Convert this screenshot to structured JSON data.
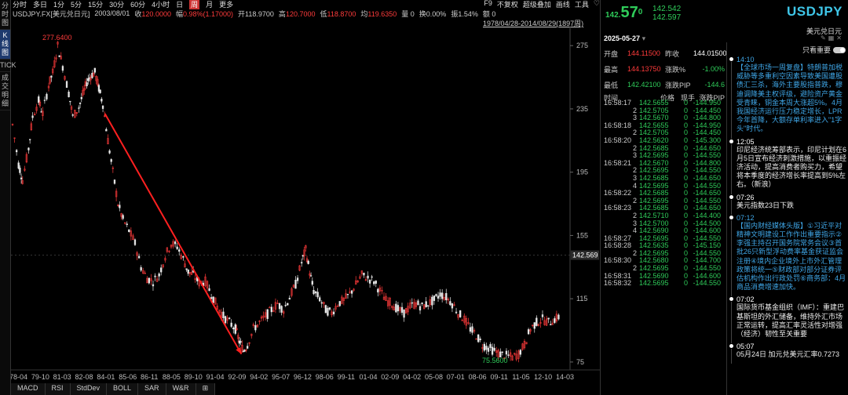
{
  "vnav": {
    "items": [
      "分时图",
      "K线图",
      "TICK",
      "成交明细"
    ]
  },
  "toolbar": {
    "periods": [
      "分时",
      "多日",
      "1分",
      "5分",
      "15分",
      "30分",
      "60分",
      "4小时",
      "日",
      "周",
      "月",
      "更多"
    ],
    "active_period": "周",
    "right_items": [
      "F9",
      "不复权",
      "超级叠加",
      "画线",
      "工具",
      "♡"
    ]
  },
  "infobar": {
    "symbol": "USDJPY.FX[美元兑日元]",
    "date": "2003/08/01",
    "close_label": "收",
    "close": "120.0000",
    "change_label": "幅",
    "change": "0.98%(1.17000)",
    "open_label": "开",
    "open": "118.9700",
    "high_label": "高",
    "high": "120.7000",
    "low_label": "低",
    "low": "118.8700",
    "avg_label": "均",
    "avg": "119.6350",
    "vol": "量 0",
    "turnover": "换0.00%",
    "amp": "振1.54%",
    "amount": "额 0"
  },
  "range_text": "1978/04/28-2014/08/29(1897周)",
  "chart_data": {
    "type": "candlestick",
    "y_ticks": [
      275,
      235,
      195,
      155,
      115,
      75
    ],
    "ylim": [
      70,
      285
    ],
    "x_ticks": [
      "78-04",
      "79-10",
      "81-03",
      "82-08",
      "84-01",
      "85-06",
      "86-11",
      "88-05",
      "89-10",
      "91-04",
      "92-09",
      "94-02",
      "95-07",
      "96-12",
      "98-06",
      "99-11",
      "01-04",
      "02-09",
      "04-02",
      "05-08",
      "07-01",
      "08-06",
      "09-11",
      "11-05",
      "12-10",
      "14-03"
    ],
    "current_price": "142.569",
    "max_label": "277.6400",
    "min_label": "75.5600",
    "path": [
      [
        0,
        225
      ],
      [
        6,
        200
      ],
      [
        10,
        190
      ],
      [
        16,
        210
      ],
      [
        20,
        230
      ],
      [
        26,
        240
      ],
      [
        30,
        232
      ],
      [
        36,
        250
      ],
      [
        40,
        258
      ],
      [
        45,
        275
      ],
      [
        50,
        262
      ],
      [
        56,
        245
      ],
      [
        60,
        230
      ],
      [
        66,
        236
      ],
      [
        70,
        244
      ],
      [
        74,
        252
      ],
      [
        78,
        256
      ],
      [
        82,
        258
      ],
      [
        86,
        248
      ],
      [
        90,
        238
      ],
      [
        95,
        215
      ],
      [
        100,
        195
      ],
      [
        105,
        175
      ],
      [
        110,
        165
      ],
      [
        116,
        158
      ],
      [
        122,
        150
      ],
      [
        128,
        135
      ],
      [
        134,
        128
      ],
      [
        140,
        126
      ],
      [
        146,
        130
      ],
      [
        152,
        142
      ],
      [
        158,
        150
      ],
      [
        164,
        148
      ],
      [
        170,
        140
      ],
      [
        175,
        132
      ],
      [
        180,
        130
      ],
      [
        186,
        125
      ],
      [
        192,
        126
      ],
      [
        198,
        118
      ],
      [
        204,
        110
      ],
      [
        210,
        104
      ],
      [
        216,
        100
      ],
      [
        222,
        96
      ],
      [
        226,
        88
      ],
      [
        230,
        82
      ],
      [
        234,
        86
      ],
      [
        240,
        96
      ],
      [
        246,
        100
      ],
      [
        252,
        104
      ],
      [
        258,
        108
      ],
      [
        264,
        112
      ],
      [
        270,
        108
      ],
      [
        276,
        116
      ],
      [
        282,
        124
      ],
      [
        288,
        138
      ],
      [
        292,
        146
      ],
      [
        296,
        132
      ],
      [
        300,
        120
      ],
      [
        306,
        115
      ],
      [
        312,
        108
      ],
      [
        318,
        106
      ],
      [
        324,
        112
      ],
      [
        330,
        114
      ],
      [
        336,
        118
      ],
      [
        342,
        124
      ],
      [
        348,
        130
      ],
      [
        354,
        128
      ],
      [
        360,
        126
      ],
      [
        366,
        120
      ],
      [
        372,
        114
      ],
      [
        378,
        112
      ],
      [
        384,
        108
      ],
      [
        390,
        106
      ],
      [
        396,
        110
      ],
      [
        402,
        112
      ],
      [
        408,
        110
      ],
      [
        414,
        112
      ],
      [
        420,
        114
      ],
      [
        426,
        118
      ],
      [
        432,
        116
      ],
      [
        438,
        112
      ],
      [
        444,
        106
      ],
      [
        450,
        102
      ],
      [
        456,
        96
      ],
      [
        462,
        92
      ],
      [
        468,
        86
      ],
      [
        474,
        84
      ],
      [
        480,
        82
      ],
      [
        486,
        80
      ],
      [
        492,
        79
      ],
      [
        498,
        78
      ],
      [
        504,
        80
      ],
      [
        510,
        86
      ],
      [
        516,
        96
      ],
      [
        522,
        100
      ],
      [
        528,
        102
      ],
      [
        534,
        100
      ],
      [
        540,
        102
      ],
      [
        546,
        104
      ]
    ],
    "arrow": {
      "from": [
        92,
        232
      ],
      "to": [
        228,
        80
      ]
    }
  },
  "bottom_tabs": [
    "MACD",
    "RSI",
    "StdDev",
    "BOLL",
    "SAR",
    "W&R",
    "⊞"
  ],
  "quote": {
    "price_small": "142.",
    "price_big": "57",
    "price_sup": "0",
    "bid": "142.542",
    "ask": "142.597",
    "symbol": "USDJPY",
    "name": "美元兑日元",
    "date": "2025-05-27",
    "stats": [
      {
        "l1": "开盘",
        "v1": "144.11500",
        "c1": "red",
        "l2": "昨收",
        "v2": "144.01500",
        "c2": "white"
      },
      {
        "l1": "最高",
        "v1": "144.13750",
        "c1": "red",
        "l2": "涨跌%",
        "v2": "-1.00%",
        "c2": "green"
      },
      {
        "l1": "最低",
        "v1": "142.42100",
        "c1": "green",
        "l2": "涨跌PIP",
        "v2": "-144.6",
        "c2": "green"
      }
    ]
  },
  "trades_header": {
    "time": "时间",
    "price": "价格",
    "vol": "现手",
    "change": "涨跌PIP"
  },
  "trades": [
    {
      "time": "16:58:17",
      "q": "",
      "price": "142.5655",
      "vol": "0",
      "chg": "-144.950"
    },
    {
      "time": "",
      "q": "2",
      "price": "142.5705",
      "vol": "0",
      "chg": "-144.450"
    },
    {
      "time": "",
      "q": "3",
      "price": "142.5670",
      "vol": "0",
      "chg": "-144.800"
    },
    {
      "time": "16:58:18",
      "q": "",
      "price": "142.5655",
      "vol": "0",
      "chg": "-144.950"
    },
    {
      "time": "",
      "q": "2",
      "price": "142.5705",
      "vol": "0",
      "chg": "-144.450"
    },
    {
      "time": "16:58:20",
      "q": "",
      "price": "142.5620",
      "vol": "0",
      "chg": "-145.300"
    },
    {
      "time": "",
      "q": "2",
      "price": "142.5685",
      "vol": "0",
      "chg": "-144.650"
    },
    {
      "time": "",
      "q": "3",
      "price": "142.5695",
      "vol": "0",
      "chg": "-144.550"
    },
    {
      "time": "16:58:21",
      "q": "",
      "price": "142.5670",
      "vol": "0",
      "chg": "-144.800"
    },
    {
      "time": "",
      "q": "2",
      "price": "142.5695",
      "vol": "0",
      "chg": "-144.550"
    },
    {
      "time": "",
      "q": "3",
      "price": "142.5685",
      "vol": "0",
      "chg": "-144.650"
    },
    {
      "time": "",
      "q": "4",
      "price": "142.5695",
      "vol": "0",
      "chg": "-144.550"
    },
    {
      "time": "16:58:22",
      "q": "",
      "price": "142.5685",
      "vol": "0",
      "chg": "-144.650"
    },
    {
      "time": "",
      "q": "2",
      "price": "142.5695",
      "vol": "0",
      "chg": "-144.550"
    },
    {
      "time": "16:58:23",
      "q": "",
      "price": "142.5685",
      "vol": "0",
      "chg": "-144.650"
    },
    {
      "time": "",
      "q": "2",
      "price": "142.5710",
      "vol": "0",
      "chg": "-144.400"
    },
    {
      "time": "",
      "q": "3",
      "price": "142.5700",
      "vol": "0",
      "chg": "-144.500"
    },
    {
      "time": "",
      "q": "4",
      "price": "142.5690",
      "vol": "0",
      "chg": "-144.600"
    },
    {
      "time": "16:58:27",
      "q": "",
      "price": "142.5695",
      "vol": "0",
      "chg": "-144.550"
    },
    {
      "time": "16:58:28",
      "q": "",
      "price": "142.5635",
      "vol": "0",
      "chg": "-145.150"
    },
    {
      "time": "",
      "q": "2",
      "price": "142.5695",
      "vol": "0",
      "chg": "-144.550"
    },
    {
      "time": "16:58:30",
      "q": "",
      "price": "142.5680",
      "vol": "0",
      "chg": "-144.700"
    },
    {
      "time": "",
      "q": "2",
      "price": "142.5695",
      "vol": "0",
      "chg": "-144.550"
    },
    {
      "time": "16:58:31",
      "q": "",
      "price": "142.5690",
      "vol": "0",
      "chg": "-144.600"
    },
    {
      "time": "16:58:32",
      "q": "",
      "price": "142.5695",
      "vol": "0",
      "chg": "-144.550"
    }
  ],
  "news_toggle_label": "只看重要",
  "news": [
    {
      "time": "14:10",
      "hl": true,
      "text": "【全球市场一周复盘】特朗普加税威胁等多重利空因素导致美国遭股债汇三杀，海外主要股指普跌，穆迪调降美主权评级，避险资产黄金受青睐，铜金本周大涨超5%。4月我国经济运行压力稳定增长，LPR今年首降，大额存单利率进入\"1字头\"时代。"
    },
    {
      "time": "12:05",
      "hl": false,
      "text": "印尼经济统筹部表示，印尼计划在6月5日宣布经济刺激措施，以重振经济活动，提高消费者购买力，希望将本季度的经济增长率提高到5%左右。（新浪）"
    },
    {
      "time": "07:26",
      "hl": false,
      "text": "美元指数23日下跌"
    },
    {
      "time": "07:12",
      "hl": true,
      "text": "【国内财经媒体头版】①习近平对精神文明建设工作作出重要指示②李强主持召开国务院常务会议③首批26只新型浮动费率基金获证监会注册④境内企业境外上市外汇管理政策将统一⑤财政部对部分证券评估机构作出行政处罚⑥商务部：4月商品消费增速加快。"
    },
    {
      "time": "07:02",
      "hl": false,
      "text": "国际货币基金组织（IMF）：重建巴基斯坦的外汇储备，维持外汇市场正常运转，提高汇率灵活性对增强（经济）韧性至关重要"
    },
    {
      "time": "05:07",
      "hl": false,
      "text": "05月24日 加元兑美元汇率0.7273"
    }
  ]
}
